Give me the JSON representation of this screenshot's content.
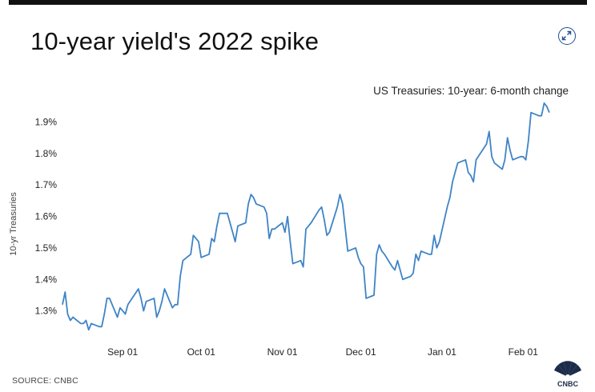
{
  "header": {
    "title": "10-year yield's 2022 spike",
    "subtitle": "US Treasuries: 10-year: 6-month change",
    "expand_icon": "expand-arrows-icon"
  },
  "footer": {
    "source": "SOURCE: CNBC",
    "logo_text": "CNBC",
    "logo_icon": "cnbc-peacock-icon"
  },
  "colors": {
    "line": "#3f84c6",
    "topbar": "#111111",
    "icon": "#1f4f8f"
  },
  "chart_data": {
    "type": "line",
    "title": "10-year yield's 2022 spike",
    "subtitle": "US Treasuries: 10-year: 6-month change",
    "ylabel": "10-yr Treasuries",
    "xlabel": "",
    "grid": false,
    "ylim": [
      1.2,
      1.97
    ],
    "xlim": [
      "2021-08-09",
      "2022-02-11"
    ],
    "y_ticks": [
      1.3,
      1.4,
      1.5,
      1.6,
      1.7,
      1.8,
      1.9
    ],
    "y_tick_labels": [
      "1.3%",
      "1.4%",
      "1.5%",
      "1.6%",
      "1.7%",
      "1.8%",
      "1.9%"
    ],
    "x_ticks": [
      "2021-09-01",
      "2021-10-01",
      "2021-11-01",
      "2021-12-01",
      "2022-01-01",
      "2022-02-01"
    ],
    "x_tick_labels": [
      "Sep 01",
      "Oct 01",
      "Nov 01",
      "Dec 01",
      "Jan 01",
      "Feb 01"
    ],
    "series": [
      {
        "x": [
          "2021-08-09",
          "2021-08-10",
          "2021-08-11",
          "2021-08-12",
          "2021-08-13",
          "2021-08-16",
          "2021-08-17",
          "2021-08-18",
          "2021-08-19",
          "2021-08-20",
          "2021-08-23",
          "2021-08-24",
          "2021-08-25",
          "2021-08-26",
          "2021-08-27",
          "2021-08-30",
          "2021-08-31",
          "2021-09-01",
          "2021-09-02",
          "2021-09-03",
          "2021-09-07",
          "2021-09-08",
          "2021-09-09",
          "2021-09-10",
          "2021-09-13",
          "2021-09-14",
          "2021-09-15",
          "2021-09-16",
          "2021-09-17",
          "2021-09-20",
          "2021-09-21",
          "2021-09-22",
          "2021-09-23",
          "2021-09-24",
          "2021-09-27",
          "2021-09-28",
          "2021-09-29",
          "2021-09-30",
          "2021-10-01",
          "2021-10-04",
          "2021-10-05",
          "2021-10-06",
          "2021-10-07",
          "2021-10-08",
          "2021-10-11",
          "2021-10-12",
          "2021-10-13",
          "2021-10-14",
          "2021-10-15",
          "2021-10-18",
          "2021-10-19",
          "2021-10-20",
          "2021-10-21",
          "2021-10-22",
          "2021-10-25",
          "2021-10-26",
          "2021-10-27",
          "2021-10-28",
          "2021-10-29",
          "2021-11-01",
          "2021-11-02",
          "2021-11-03",
          "2021-11-04",
          "2021-11-05",
          "2021-11-08",
          "2021-11-09",
          "2021-11-10",
          "2021-11-11",
          "2021-11-12",
          "2021-11-15",
          "2021-11-16",
          "2021-11-17",
          "2021-11-18",
          "2021-11-19",
          "2021-11-22",
          "2021-11-23",
          "2021-11-24",
          "2021-11-26",
          "2021-11-29",
          "2021-11-30",
          "2021-12-01",
          "2021-12-02",
          "2021-12-03",
          "2021-12-06",
          "2021-12-07",
          "2021-12-08",
          "2021-12-09",
          "2021-12-10",
          "2021-12-13",
          "2021-12-14",
          "2021-12-15",
          "2021-12-16",
          "2021-12-17",
          "2021-12-20",
          "2021-12-21",
          "2021-12-22",
          "2021-12-23",
          "2021-12-24",
          "2021-12-27",
          "2021-12-28",
          "2021-12-29",
          "2021-12-30",
          "2021-12-31",
          "2022-01-03",
          "2022-01-04",
          "2022-01-05",
          "2022-01-06",
          "2022-01-07",
          "2022-01-10",
          "2022-01-11",
          "2022-01-12",
          "2022-01-13",
          "2022-01-14",
          "2022-01-18",
          "2022-01-19",
          "2022-01-20",
          "2022-01-21",
          "2022-01-24",
          "2022-01-25",
          "2022-01-26",
          "2022-01-27",
          "2022-01-28",
          "2022-01-31",
          "2022-02-01",
          "2022-02-02",
          "2022-02-03",
          "2022-02-04",
          "2022-02-07",
          "2022-02-08",
          "2022-02-09",
          "2022-02-10",
          "2022-02-11"
        ],
        "y": [
          1.32,
          1.36,
          1.29,
          1.27,
          1.28,
          1.26,
          1.26,
          1.27,
          1.24,
          1.26,
          1.25,
          1.25,
          1.29,
          1.34,
          1.34,
          1.28,
          1.31,
          1.3,
          1.29,
          1.32,
          1.37,
          1.34,
          1.3,
          1.33,
          1.34,
          1.28,
          1.3,
          1.33,
          1.37,
          1.31,
          1.32,
          1.32,
          1.41,
          1.46,
          1.48,
          1.54,
          1.53,
          1.52,
          1.47,
          1.48,
          1.53,
          1.52,
          1.57,
          1.61,
          1.61,
          1.58,
          1.55,
          1.52,
          1.57,
          1.58,
          1.64,
          1.67,
          1.66,
          1.64,
          1.63,
          1.61,
          1.53,
          1.56,
          1.56,
          1.58,
          1.55,
          1.6,
          1.52,
          1.45,
          1.46,
          1.44,
          1.56,
          1.57,
          1.58,
          1.62,
          1.63,
          1.59,
          1.54,
          1.55,
          1.63,
          1.67,
          1.64,
          1.49,
          1.5,
          1.47,
          1.45,
          1.44,
          1.34,
          1.35,
          1.48,
          1.51,
          1.49,
          1.48,
          1.44,
          1.43,
          1.46,
          1.43,
          1.4,
          1.41,
          1.42,
          1.48,
          1.46,
          1.49,
          1.48,
          1.48,
          1.54,
          1.5,
          1.52,
          1.63,
          1.66,
          1.71,
          1.74,
          1.77,
          1.78,
          1.74,
          1.73,
          1.71,
          1.78,
          1.83,
          1.87,
          1.79,
          1.77,
          1.75,
          1.78,
          1.85,
          1.81,
          1.78,
          1.79,
          1.79,
          1.78,
          1.84,
          1.93,
          1.92,
          1.92,
          1.96,
          1.95,
          1.93
        ]
      }
    ]
  }
}
